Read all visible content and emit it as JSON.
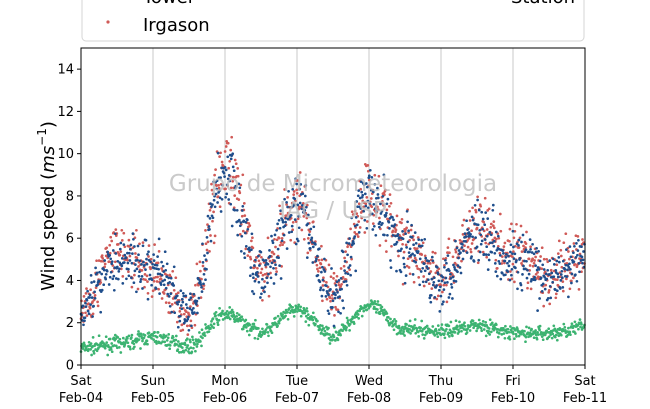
{
  "chart_data": {
    "type": "scatter",
    "title": "",
    "ylabel_main": "Wind speed (",
    "ylabel_unit_base": "ms",
    "ylabel_unit_exp": "−1",
    "ylabel_close": ")",
    "ylim": [
      0,
      15
    ],
    "yticks": [
      0,
      2,
      4,
      6,
      8,
      10,
      12,
      14
    ],
    "xlim": [
      "2021-02-04T00:00",
      "2021-02-11T00:00"
    ],
    "x_ticks": [
      {
        "day": "Sat",
        "date": "Feb-04"
      },
      {
        "day": "Sun",
        "date": "Feb-05"
      },
      {
        "day": "Mon",
        "date": "Feb-06"
      },
      {
        "day": "Tue",
        "date": "Feb-07"
      },
      {
        "day": "Wed",
        "date": "Feb-08"
      },
      {
        "day": "Thu",
        "date": "Feb-09"
      },
      {
        "day": "Fri",
        "date": "Feb-10"
      },
      {
        "day": "Sat",
        "date": "Feb-11"
      }
    ],
    "grid": "vertical",
    "legend_position": "top",
    "legend_partial_left": "Tower",
    "legend_partial_right": "Station",
    "watermark_line1": "Grupo de Micrometeorologia",
    "watermark_line2": "IAG / USP",
    "series": [
      {
        "name": "Tower",
        "color": "#1f4e8c",
        "daily_speed": [
          2.8,
          5.0,
          4.6,
          2.4,
          9.0,
          4.2,
          7.4,
          3.2,
          8.0,
          5.6,
          4.0,
          6.4,
          5.0,
          4.0,
          5.0
        ]
      },
      {
        "name": "Irgason",
        "color": "#d05a57",
        "daily_speed": [
          2.8,
          5.4,
          4.4,
          2.4,
          9.4,
          4.4,
          7.6,
          3.4,
          8.2,
          5.8,
          4.2,
          6.6,
          5.2,
          4.2,
          5.2
        ]
      },
      {
        "name": "Station",
        "color": "#3cb371",
        "daily_speed": [
          0.8,
          1.0,
          1.3,
          0.9,
          2.4,
          1.6,
          2.6,
          1.4,
          2.8,
          1.7,
          1.6,
          1.9,
          1.5,
          1.5,
          1.8
        ]
      }
    ]
  }
}
